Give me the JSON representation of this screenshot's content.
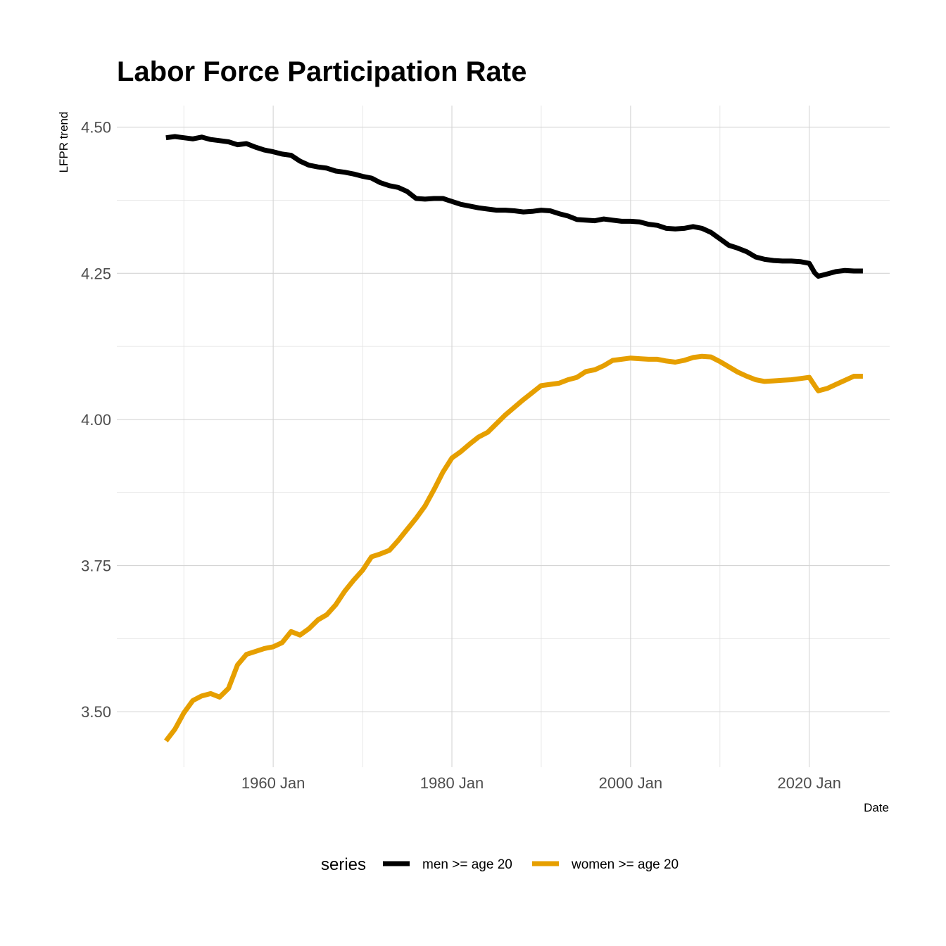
{
  "chart_data": {
    "type": "line",
    "title": "Labor Force Participation Rate",
    "xlabel": "Date",
    "ylabel": "LFPR trend",
    "x_ticks": [
      "1960 Jan",
      "1980 Jan",
      "2000 Jan",
      "2020 Jan"
    ],
    "x_tick_years": [
      1960,
      1980,
      2000,
      2020
    ],
    "x_minor_years": [
      1950,
      1970,
      1990,
      2010
    ],
    "xlim": [
      1942.5,
      2029
    ],
    "y_ticks": [
      "3.50",
      "3.75",
      "4.00",
      "4.25",
      "4.50"
    ],
    "y_tick_values": [
      3.5,
      3.75,
      4.0,
      4.25,
      4.5
    ],
    "y_minor_values": [
      3.625,
      3.875,
      4.125,
      4.375
    ],
    "ylim": [
      3.405,
      4.537
    ],
    "grid": true,
    "legend": {
      "title": "series",
      "position": "bottom"
    },
    "series": [
      {
        "name": "men >= age 20",
        "color": "#000000",
        "points": [
          [
            1948,
            4.482
          ],
          [
            1949,
            4.484
          ],
          [
            1950,
            4.482
          ],
          [
            1951,
            4.48
          ],
          [
            1952,
            4.483
          ],
          [
            1953,
            4.479
          ],
          [
            1954,
            4.477
          ],
          [
            1955,
            4.475
          ],
          [
            1956,
            4.47
          ],
          [
            1957,
            4.472
          ],
          [
            1958,
            4.466
          ],
          [
            1959,
            4.461
          ],
          [
            1960,
            4.458
          ],
          [
            1961,
            4.454
          ],
          [
            1962,
            4.452
          ],
          [
            1963,
            4.442
          ],
          [
            1964,
            4.435
          ],
          [
            1965,
            4.432
          ],
          [
            1966,
            4.43
          ],
          [
            1967,
            4.425
          ],
          [
            1968,
            4.423
          ],
          [
            1969,
            4.42
          ],
          [
            1970,
            4.416
          ],
          [
            1971,
            4.413
          ],
          [
            1972,
            4.405
          ],
          [
            1973,
            4.4
          ],
          [
            1974,
            4.397
          ],
          [
            1975,
            4.39
          ],
          [
            1976,
            4.378
          ],
          [
            1977,
            4.377
          ],
          [
            1978,
            4.378
          ],
          [
            1979,
            4.378
          ],
          [
            1980,
            4.373
          ],
          [
            1981,
            4.368
          ],
          [
            1982,
            4.365
          ],
          [
            1983,
            4.362
          ],
          [
            1984,
            4.36
          ],
          [
            1985,
            4.358
          ],
          [
            1986,
            4.358
          ],
          [
            1987,
            4.357
          ],
          [
            1988,
            4.355
          ],
          [
            1989,
            4.356
          ],
          [
            1990,
            4.358
          ],
          [
            1991,
            4.357
          ],
          [
            1992,
            4.352
          ],
          [
            1993,
            4.348
          ],
          [
            1994,
            4.342
          ],
          [
            1995,
            4.341
          ],
          [
            1996,
            4.34
          ],
          [
            1997,
            4.343
          ],
          [
            1998,
            4.341
          ],
          [
            1999,
            4.339
          ],
          [
            2000,
            4.339
          ],
          [
            2001,
            4.338
          ],
          [
            2002,
            4.334
          ],
          [
            2003,
            4.332
          ],
          [
            2004,
            4.327
          ],
          [
            2005,
            4.326
          ],
          [
            2006,
            4.327
          ],
          [
            2007,
            4.33
          ],
          [
            2008,
            4.327
          ],
          [
            2009,
            4.32
          ],
          [
            2010,
            4.309
          ],
          [
            2011,
            4.298
          ],
          [
            2012,
            4.293
          ],
          [
            2013,
            4.287
          ],
          [
            2014,
            4.278
          ],
          [
            2015,
            4.274
          ],
          [
            2016,
            4.272
          ],
          [
            2017,
            4.271
          ],
          [
            2018,
            4.271
          ],
          [
            2019,
            4.27
          ],
          [
            2020,
            4.267
          ],
          [
            2020.6,
            4.251
          ],
          [
            2021,
            4.245
          ],
          [
            2022,
            4.249
          ],
          [
            2023,
            4.253
          ],
          [
            2024,
            4.255
          ],
          [
            2025,
            4.254
          ],
          [
            2026,
            4.254
          ]
        ]
      },
      {
        "name": "women >= age 20",
        "color": "#E69F00",
        "points": [
          [
            1948,
            3.45
          ],
          [
            1949,
            3.47
          ],
          [
            1950,
            3.498
          ],
          [
            1951,
            3.519
          ],
          [
            1952,
            3.527
          ],
          [
            1953,
            3.531
          ],
          [
            1954,
            3.525
          ],
          [
            1955,
            3.54
          ],
          [
            1956,
            3.58
          ],
          [
            1957,
            3.598
          ],
          [
            1958,
            3.603
          ],
          [
            1959,
            3.608
          ],
          [
            1960,
            3.611
          ],
          [
            1961,
            3.618
          ],
          [
            1962,
            3.637
          ],
          [
            1963,
            3.631
          ],
          [
            1964,
            3.642
          ],
          [
            1965,
            3.657
          ],
          [
            1966,
            3.666
          ],
          [
            1967,
            3.683
          ],
          [
            1968,
            3.706
          ],
          [
            1969,
            3.725
          ],
          [
            1970,
            3.742
          ],
          [
            1971,
            3.765
          ],
          [
            1972,
            3.77
          ],
          [
            1973,
            3.776
          ],
          [
            1974,
            3.793
          ],
          [
            1975,
            3.812
          ],
          [
            1976,
            3.831
          ],
          [
            1977,
            3.852
          ],
          [
            1978,
            3.88
          ],
          [
            1979,
            3.91
          ],
          [
            1980,
            3.934
          ],
          [
            1981,
            3.945
          ],
          [
            1982,
            3.958
          ],
          [
            1983,
            3.97
          ],
          [
            1984,
            3.978
          ],
          [
            1985,
            3.993
          ],
          [
            1986,
            4.008
          ],
          [
            1987,
            4.021
          ],
          [
            1988,
            4.034
          ],
          [
            1989,
            4.046
          ],
          [
            1990,
            4.058
          ],
          [
            1991,
            4.06
          ],
          [
            1992,
            4.062
          ],
          [
            1993,
            4.068
          ],
          [
            1994,
            4.072
          ],
          [
            1995,
            4.082
          ],
          [
            1996,
            4.085
          ],
          [
            1997,
            4.092
          ],
          [
            1998,
            4.101
          ],
          [
            1999,
            4.103
          ],
          [
            2000,
            4.105
          ],
          [
            2001,
            4.104
          ],
          [
            2002,
            4.103
          ],
          [
            2003,
            4.103
          ],
          [
            2004,
            4.1
          ],
          [
            2005,
            4.098
          ],
          [
            2006,
            4.101
          ],
          [
            2007,
            4.106
          ],
          [
            2008,
            4.108
          ],
          [
            2009,
            4.107
          ],
          [
            2010,
            4.099
          ],
          [
            2011,
            4.09
          ],
          [
            2012,
            4.081
          ],
          [
            2013,
            4.074
          ],
          [
            2014,
            4.068
          ],
          [
            2015,
            4.065
          ],
          [
            2016,
            4.066
          ],
          [
            2017,
            4.067
          ],
          [
            2018,
            4.068
          ],
          [
            2019,
            4.07
          ],
          [
            2020,
            4.072
          ],
          [
            2020.6,
            4.058
          ],
          [
            2021,
            4.049
          ],
          [
            2022,
            4.053
          ],
          [
            2023,
            4.06
          ],
          [
            2024,
            4.067
          ],
          [
            2025,
            4.074
          ],
          [
            2026,
            4.074
          ]
        ]
      }
    ]
  }
}
